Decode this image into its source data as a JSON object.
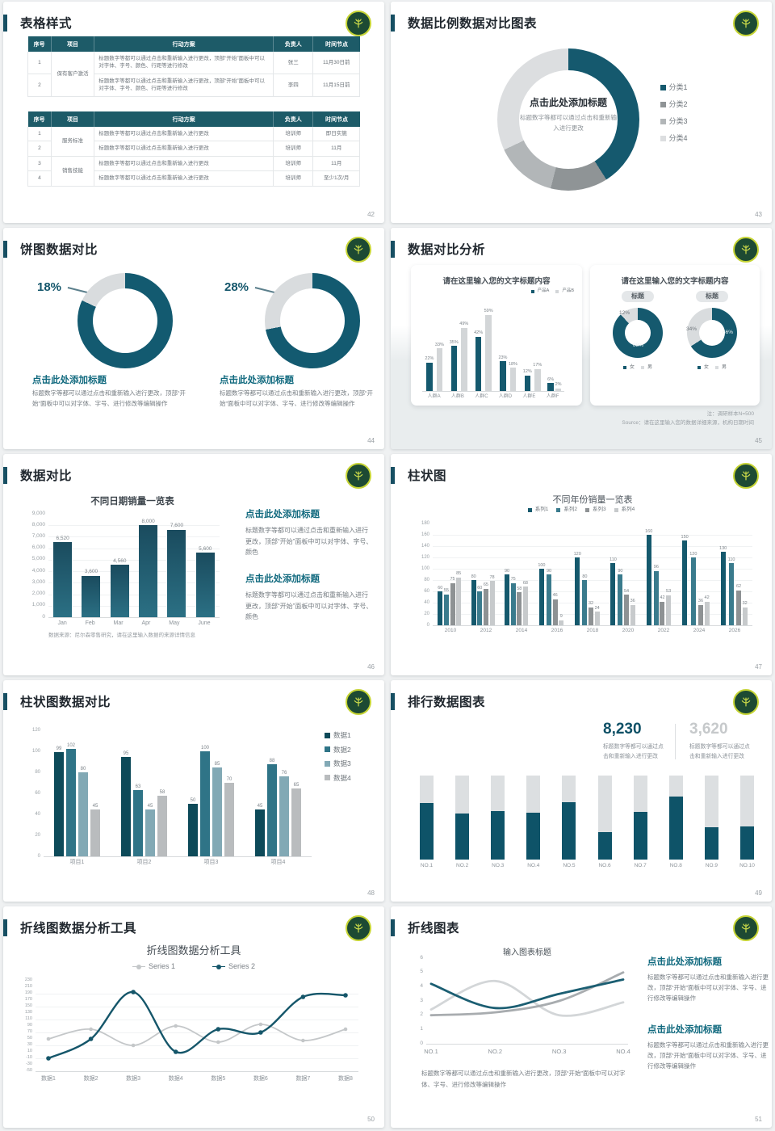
{
  "page_bg": "#eff1f2",
  "colors": {
    "accent_teal": "#15596e",
    "dark_teal": "#0d4a59",
    "title_bar": "#174f63",
    "table_header": "#1d5b68",
    "heading_teal": "#10697e",
    "gray_light": "#dcdee0",
    "gray_mid": "#b2b6b8",
    "logo_green": "#1d4a33",
    "logo_ring": "#c6d434"
  },
  "icons": {
    "logo": "tree-emblem-icon"
  },
  "slides": [
    {
      "number": "42",
      "title": "表格样式",
      "tables": [
        {
          "headers": [
            "序号",
            "项目",
            "行动方案",
            "负责人",
            "时间节点"
          ],
          "rows": [
            [
              "1",
              "保有客户激活",
              "标题数字等都可以通过点击和重新输入进行更改，顶部“开始”面板中可以对字体、字号、颜色、行距等进行修改",
              "张三",
              "11月30日前"
            ],
            [
              "2",
              "",
              "标题数字等都可以通过点击和重新输入进行更改，顶部“开始”面板中可以对字体、字号、颜色、行距等进行修改",
              "李四",
              "11月15日前"
            ]
          ]
        },
        {
          "headers": [
            "序号",
            "项目",
            "行动方案",
            "负责人",
            "时间节点"
          ],
          "rows": [
            [
              "1",
              "服务标准",
              "标题数字等都可以通过点击和重新输入进行更改",
              "培训师",
              "即日实施"
            ],
            [
              "2",
              "",
              "标题数字等都可以通过点击和重新输入进行更改",
              "培训师",
              "11月"
            ],
            [
              "3",
              "销售技能",
              "标题数字等都可以通过点击和重新输入进行更改",
              "培训师",
              "11月"
            ],
            [
              "4",
              "",
              "标题数字等都可以通过点击和重新输入进行更改",
              "培训师",
              "至少1次/月"
            ]
          ]
        }
      ]
    },
    {
      "number": "43",
      "title": "数据比例数据对比图表",
      "center_title": "点击此处添加标题",
      "center_sub": "标题数字等都可以通过点击和重新输入进行更改",
      "chart_data": {
        "type": "pie",
        "labels": [
          "分类1",
          "分类2",
          "分类3",
          "分类4"
        ],
        "values": [
          41,
          13,
          14,
          32
        ],
        "colors": [
          "#15596e",
          "#8f9496",
          "#b2b6b8",
          "#dcdee0"
        ],
        "legend_position": "right"
      }
    },
    {
      "number": "44",
      "title": "饼图数据对比",
      "items": [
        {
          "percent": "18%",
          "heading": "点击此处添加标题",
          "body": "标题数字等都可以通过点击和重新输入进行更改，顶部“开始”面板中可以对字体、字号、进行修改等编辑操作",
          "chart_data": {
            "type": "pie",
            "values": [
              82,
              18
            ],
            "colors": [
              "#135a70",
              "#d9dcde"
            ]
          }
        },
        {
          "percent": "28%",
          "heading": "点击此处添加标题",
          "body": "标题数字等都可以通过点击和重新输入进行更改，顶部“开始”面板中可以对字体、字号、进行修改等编辑操作",
          "chart_data": {
            "type": "pie",
            "values": [
              72,
              28
            ],
            "colors": [
              "#135a70",
              "#d9dcde"
            ]
          }
        }
      ]
    },
    {
      "number": "45",
      "title": "数据对比分析",
      "card1": {
        "title": "请在这里输入您的文字标题内容",
        "chart_data": {
          "type": "bar",
          "categories": [
            "人群A",
            "人群B",
            "人群C",
            "人群D",
            "人群E",
            "人群F"
          ],
          "series": [
            {
              "name": "产品A",
              "color": "#15596e",
              "values": [
                22,
                35,
                42,
                23,
                12,
                6
              ]
            },
            {
              "name": "产品B",
              "color": "#d3d6d8",
              "values": [
                33,
                49,
                59,
                18,
                17,
                2
              ]
            }
          ],
          "ylim": [
            0,
            70
          ],
          "value_suffix": "%"
        }
      },
      "card2": {
        "title": "请在这里输入您的文字标题内容",
        "badge": "标题",
        "donuts": [
          {
            "main": "88%",
            "small": "12%",
            "chart_data": {
              "type": "pie",
              "labels": [
                "女",
                "男"
              ],
              "values": [
                88,
                12
              ],
              "colors": [
                "#15596e",
                "#d9dcde"
              ]
            }
          },
          {
            "main": "66%",
            "small": "34%",
            "chart_data": {
              "type": "pie",
              "labels": [
                "女",
                "男"
              ],
              "values": [
                66,
                34
              ],
              "colors": [
                "#15596e",
                "#d9dcde"
              ]
            }
          }
        ],
        "legend": [
          "女",
          "男"
        ]
      },
      "note": "注：调研样本N=500",
      "source": "Source：请在这里输入您的数据详细来源，机构日期时间"
    },
    {
      "number": "46",
      "title": "数据对比",
      "chart_title": "不同日期销量一览表",
      "chart_data": {
        "type": "bar",
        "categories": [
          "Jan",
          "Feb",
          "Mar",
          "Apr",
          "May",
          "June"
        ],
        "values": [
          6520,
          3600,
          4560,
          8000,
          7600,
          5600
        ],
        "ylim": [
          0,
          9000
        ],
        "ystep": 1000
      },
      "source": "数据来源：尼尔森零售研究，请在这里输入数据的来源详情信息",
      "blocks": [
        {
          "heading": "点击此处添加标题",
          "body": "标题数字等都可以通过点击和重新输入进行更改，顶部“开始”面板中可以对字体、字号、颜色"
        },
        {
          "heading": "点击此处添加标题",
          "body": "标题数字等都可以通过点击和重新输入进行更改，顶部“开始”面板中可以对字体、字号、颜色"
        }
      ]
    },
    {
      "number": "47",
      "title": "柱状图",
      "chart_title": "不同年份销量一览表",
      "chart_data": {
        "type": "bar",
        "categories": [
          "2010",
          "2012",
          "2014",
          "2016",
          "2018",
          "2020",
          "2022",
          "2024",
          "2026"
        ],
        "series": [
          {
            "name": "系列1",
            "color": "#15596d",
            "values": [
              60,
              80,
              90,
              100,
              120,
              110,
              160,
              150,
              130
            ]
          },
          {
            "name": "系列2",
            "color": "#3a7b8d",
            "values": [
              55,
              60,
              75,
              90,
              80,
              90,
              96,
              120,
              110
            ]
          },
          {
            "name": "系列3",
            "color": "#8e9294",
            "values": [
              75,
              65,
              58,
              46,
              32,
              54,
              42,
              36,
              62
            ]
          },
          {
            "name": "系列4",
            "color": "#c7cacc",
            "values": [
              85,
              78,
              68,
              9,
              24,
              36,
              53,
              42,
              32
            ]
          }
        ],
        "ylim": [
          0,
          180
        ],
        "ystep": 20
      }
    },
    {
      "number": "48",
      "title": "柱状图数据对比",
      "chart_data": {
        "type": "bar",
        "categories": [
          "项目1",
          "项目2",
          "项目3",
          "项目4"
        ],
        "series": [
          {
            "name": "数据1",
            "color": "#0d4a59",
            "values": [
              99,
              95,
              50,
              45
            ]
          },
          {
            "name": "数据2",
            "color": "#2f7487",
            "values": [
              102,
              63,
              100,
              88
            ]
          },
          {
            "name": "数据3",
            "color": "#82a9b5",
            "values": [
              80,
              45,
              85,
              76
            ]
          },
          {
            "name": "数据4",
            "color": "#b9bcbe",
            "values": [
              45,
              58,
              70,
              65
            ]
          }
        ],
        "ylim": [
          0,
          120
        ],
        "ystep": 20,
        "legend_position": "right"
      }
    },
    {
      "number": "49",
      "title": "排行数据图表",
      "stat1": {
        "value": "8,230",
        "caption": "标题数字等都可以通过点击和重新输入进行更改"
      },
      "stat2": {
        "value": "3,620",
        "caption": "标题数字等都可以通过点击和重新输入进行更改"
      },
      "chart_data": {
        "type": "bar",
        "categories": [
          "NO.1",
          "NO.2",
          "NO.3",
          "NO.4",
          "NO.5",
          "NO.6",
          "NO.7",
          "NO.8",
          "NO.9",
          "NO.10"
        ],
        "fill_percent": [
          67,
          55,
          58,
          56,
          68,
          33,
          57,
          75,
          38,
          39
        ],
        "fill_color": "#0e5368",
        "track_color": "#dcdfe1"
      }
    },
    {
      "number": "50",
      "title": "折线图数据分析工具",
      "chart_title": "折线图数据分析工具",
      "chart_data": {
        "type": "line",
        "x": [
          "数据1",
          "数据2",
          "数据3",
          "数据4",
          "数据5",
          "数据6",
          "数据7",
          "数据8"
        ],
        "series": [
          {
            "name": "Series 1",
            "color": "#c4c7c9",
            "values": [
              50,
              80,
              30,
              90,
              40,
              95,
              45,
              80
            ]
          },
          {
            "name": "Series 2",
            "color": "#15566a",
            "values": [
              -10,
              50,
              195,
              10,
              80,
              70,
              180,
              185
            ]
          }
        ],
        "ylim": [
          -50,
          230
        ],
        "ystep": 20,
        "legend_position": "top"
      }
    },
    {
      "number": "51",
      "title": "折线图表",
      "chart_title": "输入图表标题",
      "chart_data": {
        "type": "line",
        "x": [
          "NO.1",
          "NO.2",
          "NO.3",
          "NO.4"
        ],
        "series": [
          {
            "name": "线条1",
            "color": "#1b5e72",
            "values": [
              4.2,
              2.5,
              3.5,
              4.5
            ]
          },
          {
            "name": "线条2",
            "color": "#a8acaf",
            "values": [
              2,
              2.2,
              3,
              5
            ]
          },
          {
            "name": "线条3",
            "color": "#d3d6d8",
            "values": [
              2.4,
              4.4,
              2,
              2.9
            ]
          }
        ],
        "ylim": [
          0,
          6
        ],
        "ystep": 1
      },
      "caption": "标题数字等都可以通过点击和重新输入进行更改，顶部“开始”面板中可以对字体、字号、进行修改等编辑操作",
      "blocks": [
        {
          "heading": "点击此处添加标题",
          "body": "标题数字等都可以通过点击和重新输入进行更改，顶部“开始”面板中可以对字体、字号、进行修改等编辑操作"
        },
        {
          "heading": "点击此处添加标题",
          "body": "标题数字等都可以通过点击和重新输入进行更改，顶部“开始”面板中可以对字体、字号、进行修改等编辑操作"
        }
      ]
    }
  ]
}
